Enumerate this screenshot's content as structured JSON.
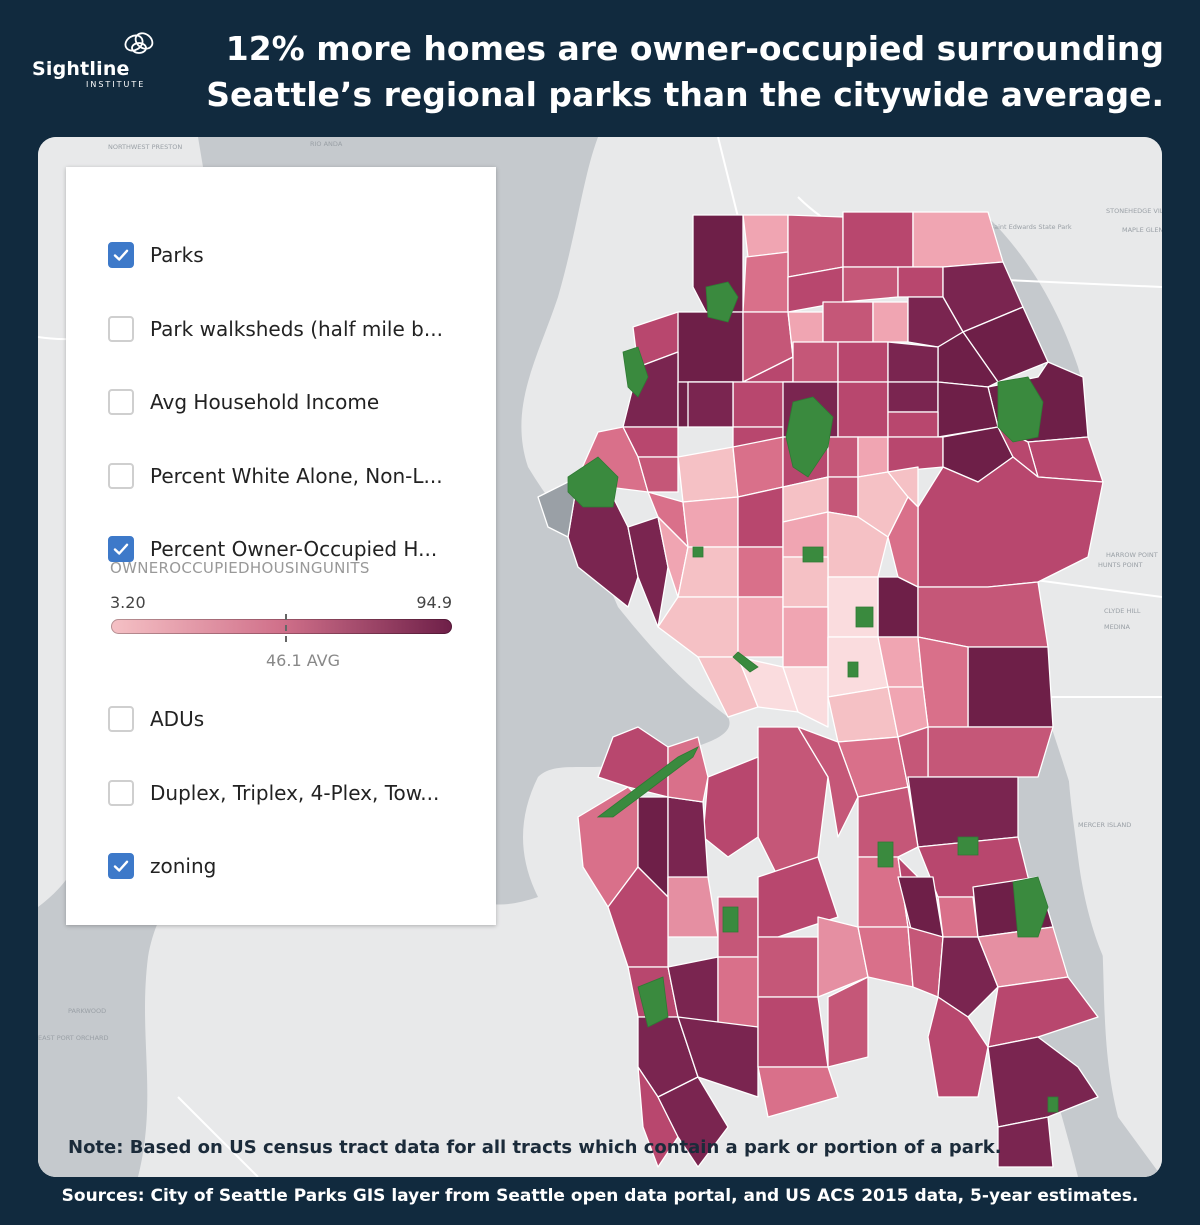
{
  "brand": {
    "name": "Sightline",
    "sub": "INSTITUTE",
    "logo_icon": "knot-logo-icon"
  },
  "headline": "12% more homes are owner-occupied surrounding Seattle’s regional parks than the citywide average.",
  "legend": {
    "layers": [
      {
        "label": "Parks",
        "checked": true
      },
      {
        "label": "Park walksheds (half mile b...",
        "checked": false
      },
      {
        "label": "Avg Household Income",
        "checked": false
      },
      {
        "label": "Percent White Alone, Non-L...",
        "checked": false
      },
      {
        "label": "Percent Owner-Occupied H...",
        "checked": true
      }
    ],
    "scale": {
      "title": "OWNEROCCUPIEDHOUSINGUNITS",
      "min": "3.20",
      "max": "94.9",
      "avg_label": "46.1 AVG",
      "min_value": 3.2,
      "max_value": 94.9,
      "avg_value": 46.1,
      "colors": [
        "#f5c1c5",
        "#d0708a",
        "#6e1f48"
      ]
    },
    "layers_more": [
      {
        "label": "ADUs",
        "checked": false
      },
      {
        "label": "Duplex, Triplex, 4-Plex, Tow...",
        "checked": false
      },
      {
        "label": "zoning",
        "checked": true
      }
    ]
  },
  "map_labels": {
    "l1": "Saint Edwards State Park",
    "l2": "STONEHEDGE VILLAGE",
    "l3": "MAPLE GLEN",
    "l4": "HARROW POINT",
    "l5": "HUNTS POINT",
    "l6": "CLYDE HILL",
    "l7": "MEDINA",
    "l8": "MERCER ISLAND",
    "l9": "PARKWOOD",
    "l10": "EAST PORT ORCHARD",
    "l11": "RIO ANDA",
    "l12": "NORTHWEST PRESTON"
  },
  "note": "Note: Based on US census tract data for all tracts which contain a park or portion of a park.",
  "sources": "Sources: City of Seattle Parks GIS layer from Seattle open data portal, and US ACS 2015 data, 5-year estimates."
}
